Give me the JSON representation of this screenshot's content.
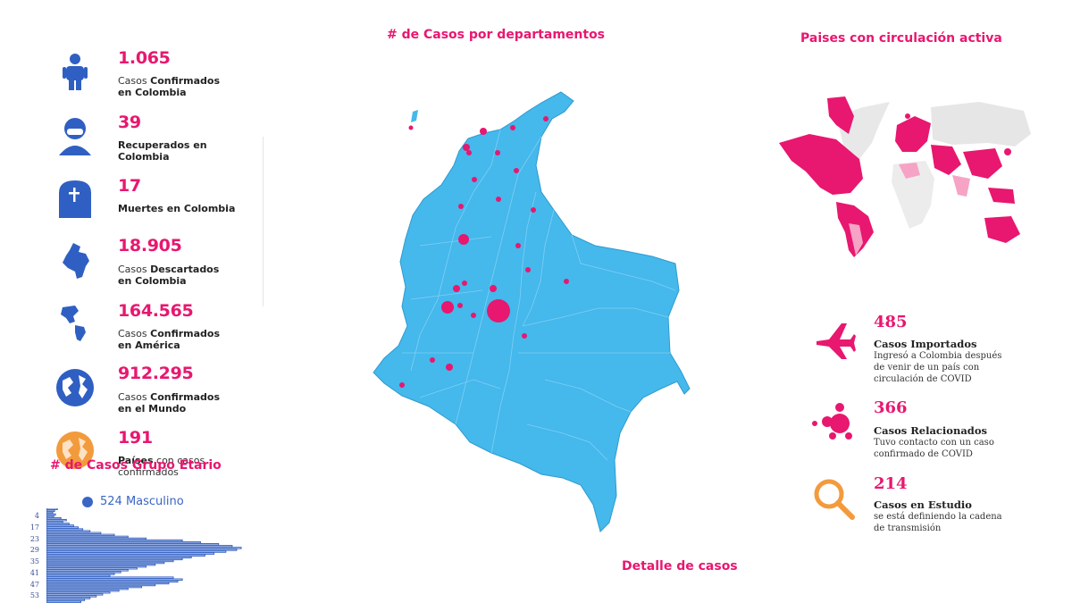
{
  "stats": [
    {
      "number": "1.065",
      "prefix": "Casos ",
      "bold": "Confirmados",
      "rest": "en Colombia",
      "icon": "person-icon"
    },
    {
      "number": "39",
      "prefix": "",
      "bold": "Recuperados en",
      "rest": "Colombia",
      "icon": "recovered-person-icon"
    },
    {
      "number": "17",
      "prefix": "",
      "bold": "Muertes en Colombia",
      "rest": "",
      "icon": "tombstone-icon"
    },
    {
      "number": "18.905",
      "prefix": "Casos ",
      "bold": "Descartados",
      "rest": "en Colombia",
      "icon": "colombia-map-icon"
    },
    {
      "number": "164.565",
      "prefix": "Casos ",
      "bold": "Confirmados",
      "rest": "en América",
      "icon": "americas-map-icon"
    },
    {
      "number": "912.295",
      "prefix": "Casos ",
      "bold": "Confirmados",
      "rest": "en el Mundo",
      "icon": "globe-icon"
    },
    {
      "number": "191",
      "prefix": "",
      "bold": "Países",
      "rest": "con casos confirmados",
      "icon": "orange-globe-icon"
    }
  ],
  "titles": {
    "departments": "# de Casos por departamentos",
    "countries": "Paises con circulación activa",
    "age_group": "# de Casos Grupo Etario",
    "details": "Detalle de casos"
  },
  "legend": {
    "label": "524 Masculino",
    "color": "#3a66c4"
  },
  "age_labels": [
    "4",
    "17",
    "23",
    "29",
    "35",
    "41",
    "47",
    "53"
  ],
  "details": [
    {
      "number": "485",
      "title": "Casos Importados",
      "desc": "Ingresó a Colombia después de venir de un país con circulación de COVID",
      "icon": "airplane-icon"
    },
    {
      "number": "366",
      "title": "Casos Relacionados",
      "desc": "Tuvo contacto con un caso confirmado de COVID",
      "icon": "cluster-icon"
    },
    {
      "number": "214",
      "title": "Casos en Estudio",
      "desc": "se está definiendo la cadena de transmisión",
      "icon": "magnifier-icon"
    }
  ],
  "colors": {
    "accent": "#e8176f",
    "icon_blue": "#2f5fc2",
    "map_blue": "#45b8ec",
    "orange": "#f29b3d"
  },
  "chart_data": {
    "type": "bar",
    "orientation": "horizontal",
    "series": [
      {
        "name": "524 Masculino",
        "values": [
          12,
          9,
          7,
          10,
          8,
          16,
          22,
          18,
          25,
          30,
          35,
          40,
          48,
          60,
          75,
          90,
          110,
          150,
          170,
          190,
          205,
          215,
          210,
          198,
          185,
          175,
          160,
          150,
          140,
          130,
          120,
          110,
          100,
          90,
          82,
          75,
          70,
          140,
          150,
          145,
          135,
          120,
          105,
          90,
          80,
          70,
          62,
          55,
          48,
          42,
          38
        ]
      }
    ]
  }
}
